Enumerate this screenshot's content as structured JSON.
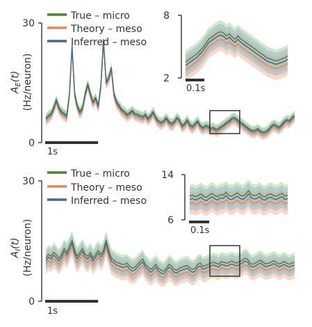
{
  "chart_data": [
    {
      "type": "line",
      "ylabel": [
        "A_E(t)",
        "(Hz/neuron)"
      ],
      "ylim": [
        0,
        30
      ],
      "yticks": [
        "0",
        "30"
      ],
      "scalebar_label": "1s",
      "legend_placement": "top-left",
      "series": [
        {
          "name": "True – micro",
          "color": "#4f7f35"
        },
        {
          "name": "Theory – meso",
          "color": "#e0875c"
        },
        {
          "name": "Inferred – meso",
          "color": "#4a6a85"
        }
      ],
      "t": [
        0.0,
        0.05,
        0.1,
        0.15,
        0.2,
        0.25,
        0.3,
        0.35,
        0.4,
        0.45,
        0.5,
        0.55,
        0.6,
        0.65,
        0.7,
        0.75,
        0.8,
        0.85,
        0.9,
        0.95,
        1.0,
        1.05,
        1.1,
        1.15,
        1.2,
        1.25,
        1.3,
        1.35,
        1.4,
        1.45,
        1.5,
        1.55,
        1.6,
        1.65,
        1.7,
        1.75,
        1.8,
        1.85,
        1.9,
        1.95,
        2.0,
        2.05,
        2.1,
        2.15,
        2.2,
        2.25,
        2.3,
        2.35,
        2.4,
        2.45,
        2.5,
        2.55,
        2.6,
        2.65,
        2.7,
        2.75,
        2.8,
        2.85,
        2.9,
        2.95,
        3.0,
        3.05,
        3.1,
        3.15,
        3.2,
        3.25,
        3.3,
        3.35,
        3.4,
        3.45,
        3.5,
        3.55,
        3.6,
        3.65,
        3.7,
        3.75,
        3.8,
        3.85,
        3.9,
        3.95,
        4.0,
        4.05,
        4.1,
        4.15,
        4.2,
        4.25,
        4.3,
        4.35,
        4.4,
        4.45,
        4.5,
        4.55,
        4.6,
        4.65,
        4.7,
        4.75
      ],
      "values": [
        5.8,
        6.5,
        7.0,
        8.5,
        10.5,
        8.5,
        7.5,
        7.0,
        6.5,
        12.0,
        24.0,
        12.0,
        9.0,
        7.5,
        8.5,
        12.0,
        14.5,
        12.0,
        10.0,
        11.0,
        9.0,
        14.0,
        25.5,
        15.0,
        16.0,
        18.5,
        12.0,
        10.0,
        9.0,
        8.0,
        7.5,
        6.8,
        7.2,
        7.8,
        7.0,
        6.8,
        6.5,
        6.2,
        6.8,
        5.8,
        6.5,
        7.5,
        6.0,
        5.2,
        4.8,
        5.2,
        6.0,
        5.0,
        4.5,
        5.0,
        6.0,
        5.5,
        4.0,
        4.5,
        5.5,
        4.2,
        3.8,
        4.5,
        5.2,
        4.0,
        3.5,
        4.0,
        3.8,
        3.3,
        3.5,
        3.0,
        3.3,
        3.8,
        4.2,
        4.8,
        5.2,
        5.8,
        6.0,
        5.5,
        5.0,
        4.5,
        4.0,
        3.5,
        3.0,
        2.7,
        2.8,
        3.2,
        2.6,
        2.3,
        2.5,
        3.0,
        3.8,
        4.3,
        4.0,
        3.6,
        4.2,
        5.0,
        5.5,
        5.2,
        6.0,
        6.5
      ],
      "band_halfwidth": 1.2,
      "inset": {
        "ylim": [
          2,
          8
        ],
        "yticks": [
          "2",
          "8"
        ],
        "scalebar_label": "0.1s",
        "t": [
          0,
          1,
          2,
          3,
          4,
          5,
          6,
          7,
          8,
          9,
          10,
          11,
          12,
          13,
          14,
          15,
          16,
          17,
          18,
          19,
          20,
          21,
          22,
          23,
          24,
          25,
          26,
          27,
          28,
          29,
          30,
          31,
          32,
          33,
          34,
          35
        ],
        "values": [
          3.2,
          3.4,
          3.6,
          3.8,
          4.0,
          4.3,
          4.6,
          5.0,
          5.4,
          5.6,
          5.8,
          6.0,
          6.1,
          6.0,
          5.7,
          5.9,
          5.6,
          5.4,
          5.7,
          5.4,
          5.2,
          5.0,
          4.8,
          4.6,
          4.4,
          4.2,
          4.0,
          3.8,
          3.6,
          3.5,
          3.4,
          3.3,
          3.4,
          3.5,
          3.6,
          3.8
        ],
        "band_halfwidth": 1.1
      }
    },
    {
      "type": "line",
      "ylabel": [
        "A_I(t)",
        "(Hz/neuron)"
      ],
      "ylim": [
        0,
        30
      ],
      "yticks": [
        "0",
        "30"
      ],
      "scalebar_label": "1s",
      "legend_placement": "top-left",
      "series": [
        {
          "name": "True – micro",
          "color": "#4f7f35"
        },
        {
          "name": "Theory – meso",
          "color": "#e0875c"
        },
        {
          "name": "Inferred – meso",
          "color": "#4a6a85"
        }
      ],
      "t": [
        0.0,
        0.05,
        0.1,
        0.15,
        0.2,
        0.25,
        0.3,
        0.35,
        0.4,
        0.45,
        0.5,
        0.55,
        0.6,
        0.65,
        0.7,
        0.75,
        0.8,
        0.85,
        0.9,
        0.95,
        1.0,
        1.05,
        1.1,
        1.15,
        1.2,
        1.25,
        1.3,
        1.35,
        1.4,
        1.45,
        1.5,
        1.55,
        1.6,
        1.65,
        1.7,
        1.75,
        1.8,
        1.85,
        1.9,
        1.95,
        2.0,
        2.05,
        2.1,
        2.15,
        2.2,
        2.25,
        2.3,
        2.35,
        2.4,
        2.45,
        2.5,
        2.55,
        2.6,
        2.65,
        2.7,
        2.75,
        2.8,
        2.85,
        2.9,
        2.95,
        3.0,
        3.05,
        3.1,
        3.15,
        3.2,
        3.25,
        3.3,
        3.35,
        3.4,
        3.45,
        3.5,
        3.55,
        3.6,
        3.65,
        3.7,
        3.75,
        3.8,
        3.85,
        3.9,
        3.95,
        4.0,
        4.05,
        4.1,
        4.15,
        4.2,
        4.25,
        4.3,
        4.35,
        4.4,
        4.45,
        4.5,
        4.55,
        4.6,
        4.65,
        4.7,
        4.75
      ],
      "values": [
        10.0,
        11.0,
        10.5,
        11.5,
        10.8,
        10.0,
        11.0,
        12.5,
        11.5,
        13.0,
        14.5,
        12.0,
        10.5,
        11.5,
        12.5,
        11.0,
        10.5,
        11.5,
        10.0,
        11.0,
        12.0,
        11.0,
        12.0,
        14.5,
        12.0,
        10.0,
        9.5,
        9.0,
        8.8,
        8.5,
        8.5,
        8.8,
        8.0,
        7.5,
        7.8,
        8.5,
        9.2,
        9.8,
        8.5,
        7.8,
        7.2,
        7.8,
        8.5,
        7.5,
        7.0,
        6.8,
        7.5,
        8.5,
        8.0,
        7.2,
        7.0,
        7.5,
        7.8,
        8.0,
        8.2,
        7.6,
        7.2,
        7.5,
        8.5,
        8.8,
        8.0,
        8.2,
        8.5,
        8.8,
        9.0,
        8.8,
        8.5,
        9.2,
        9.0,
        8.8,
        9.0,
        9.3,
        9.0,
        8.8,
        9.2,
        9.5,
        10.0,
        9.8,
        8.8,
        8.5,
        8.8,
        9.2,
        9.5,
        9.0,
        8.6,
        8.8,
        9.0,
        9.4,
        9.0,
        8.6,
        8.8,
        9.2,
        8.8,
        8.5,
        8.8,
        9.0
      ],
      "band_halfwidth": 2.4,
      "inset": {
        "ylim": [
          6,
          14
        ],
        "yticks": [
          "14",
          "6"
        ],
        "scalebar_label": "0.1s",
        "t": [
          0,
          1,
          2,
          3,
          4,
          5,
          6,
          7,
          8,
          9,
          10,
          11,
          12,
          13,
          14,
          15,
          16,
          17,
          18,
          19,
          20,
          21,
          22,
          23,
          24,
          25,
          26,
          27,
          28,
          29,
          30,
          31,
          32,
          33,
          34,
          35
        ],
        "values": [
          9.6,
          9.8,
          9.5,
          9.7,
          10.0,
          9.6,
          9.4,
          9.8,
          10.1,
          9.7,
          9.5,
          9.9,
          9.8,
          10.3,
          9.7,
          9.6,
          9.9,
          10.2,
          9.8,
          9.6,
          10.0,
          10.6,
          9.9,
          9.7,
          9.8,
          10.1,
          9.6,
          9.5,
          9.9,
          10.0,
          9.7,
          9.6,
          9.9,
          10.1,
          9.6,
          9.8
        ],
        "band_halfwidth": 2.0
      }
    }
  ]
}
